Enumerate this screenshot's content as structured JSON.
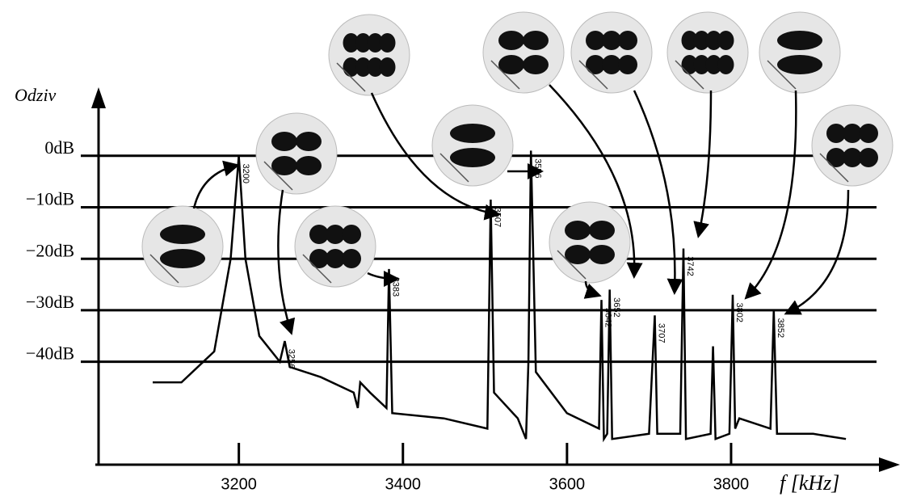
{
  "chart_data": {
    "type": "line",
    "x_label": "f [kHz]",
    "y_label": "Odziv",
    "xlim": [
      3029,
      3997
    ],
    "ylim": [
      -60,
      13
    ],
    "xticks": [
      3200,
      3400,
      3600,
      3800
    ],
    "yticks": [
      {
        "value": 0,
        "label": "0dB"
      },
      {
        "value": -10,
        "label": "−10dB"
      },
      {
        "value": -20,
        "label": "−20dB"
      },
      {
        "value": -30,
        "label": "−30dB"
      },
      {
        "value": -40,
        "label": "−40dB"
      }
    ],
    "grid": true,
    "series": [
      {
        "color": "#000000",
        "x": [
          3095,
          3130,
          3170,
          3190,
          3200,
          3208,
          3225,
          3250,
          3256,
          3262,
          3300,
          3340,
          3345,
          3348,
          3360,
          3380,
          3383,
          3387,
          3450,
          3503,
          3507,
          3511,
          3540,
          3550,
          3553,
          3556,
          3562,
          3600,
          3639,
          3642,
          3645,
          3649,
          3652,
          3655,
          3700,
          3707,
          3710,
          3738,
          3742,
          3745,
          3775,
          3778,
          3781,
          3798,
          3802,
          3805,
          3810,
          3848,
          3852,
          3856,
          3900,
          3940
        ],
        "values": [
          -44,
          -44,
          -38,
          -20,
          0,
          -20,
          -35,
          -40,
          -36,
          -41,
          -43,
          -46,
          -49,
          -44,
          -46,
          -49,
          -22,
          -50,
          -51,
          -53,
          -8.5,
          -46,
          -51,
          -55,
          -40,
          1,
          -42,
          -50,
          -53,
          -28,
          -55,
          -54,
          -26,
          -55,
          -54,
          -31,
          -54,
          -54,
          -18,
          -55,
          -54,
          -37,
          -55,
          -54,
          -27,
          -53,
          -51,
          -53,
          -30,
          -54,
          -54,
          -55
        ]
      }
    ],
    "peak_labels": [
      3200,
      3256,
      3383,
      3507,
      3556,
      3642,
      3652,
      3707,
      3742,
      3802,
      3852
    ]
  }
}
